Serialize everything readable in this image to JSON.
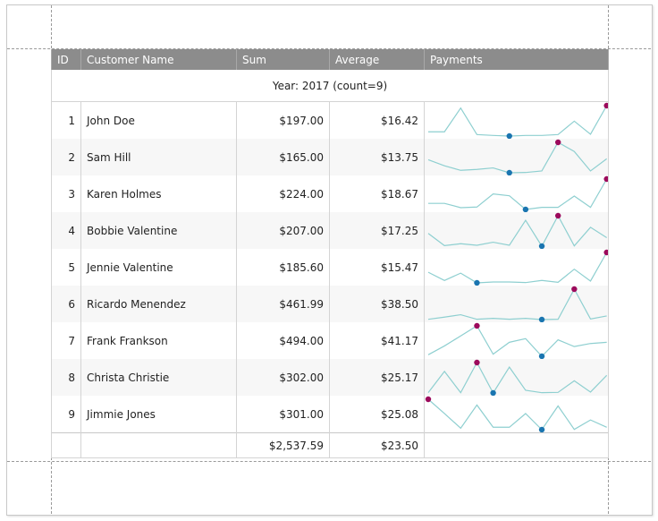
{
  "columns": [
    "ID",
    "Customer Name",
    "Sum",
    "Average",
    "Payments"
  ],
  "group_label": "Year: 2017 (count=9)",
  "rows": [
    {
      "id": "1",
      "name": "John Doe",
      "sum": "$197.00",
      "avg": "$16.42",
      "payments": [
        0.14,
        0.14,
        0.92,
        0.05,
        0.02,
        0,
        0.02,
        0.02,
        0.05,
        0.49,
        0.06,
        1
      ]
    },
    {
      "id": "2",
      "name": "Sam Hill",
      "sum": "$165.00",
      "avg": "$13.75",
      "payments": [
        0.43,
        0.23,
        0.08,
        0.11,
        0.16,
        0,
        0.01,
        0.06,
        1,
        0.7,
        0.06,
        0.46
      ]
    },
    {
      "id": "3",
      "name": "Karen Holmes",
      "sum": "$224.00",
      "avg": "$18.67",
      "payments": [
        0.2,
        0.2,
        0.06,
        0.08,
        0.51,
        0.45,
        0,
        0.07,
        0.07,
        0.44,
        0.07,
        1
      ]
    },
    {
      "id": "4",
      "name": "Bobbie Valentine",
      "sum": "$207.00",
      "avg": "$17.25",
      "payments": [
        0.42,
        0.02,
        0.08,
        0.03,
        0.13,
        0.03,
        0.85,
        0,
        1,
        0.01,
        0.62,
        0.28
      ]
    },
    {
      "id": "5",
      "name": "Jennie Valentine",
      "sum": "$185.60",
      "avg": "$15.47",
      "payments": [
        0.35,
        0.08,
        0.32,
        0,
        0.03,
        0.03,
        0.01,
        0.08,
        0.02,
        0.45,
        0.06,
        1
      ]
    },
    {
      "id": "6",
      "name": "Ricardo Menendez",
      "sum": "$461.99",
      "avg": "$38.50",
      "payments": [
        0.01,
        0.08,
        0.16,
        0.01,
        0.04,
        0.01,
        0.04,
        0,
        0.01,
        1,
        0.02,
        0.12
      ]
    },
    {
      "id": "7",
      "name": "Frank Frankson",
      "sum": "$494.00",
      "avg": "$41.17",
      "payments": [
        0.05,
        0.34,
        0.67,
        1,
        0.07,
        0.46,
        0.58,
        0,
        0.54,
        0.32,
        0.42,
        0.46
      ]
    },
    {
      "id": "8",
      "name": "Christa Christie",
      "sum": "$302.00",
      "avg": "$25.17",
      "payments": [
        0.01,
        0.71,
        0.01,
        1,
        0,
        0.85,
        0.09,
        0.01,
        0.02,
        0.4,
        0.03,
        0.58
      ]
    },
    {
      "id": "9",
      "name": "Jimmie Jones",
      "sum": "$301.00",
      "avg": "$25.08",
      "payments": [
        1,
        0.53,
        0.05,
        0.81,
        0.08,
        0.08,
        0.53,
        0,
        0.78,
        0.01,
        0.32,
        0.08
      ]
    }
  ],
  "totals": {
    "sum": "$2,537.59",
    "avg": "$23.50"
  },
  "colors": {
    "header_bg": "#8c8c8c",
    "sparkline": "#8ecfd0",
    "min_marker": "#1a75b0",
    "max_marker": "#9c0a5c"
  }
}
